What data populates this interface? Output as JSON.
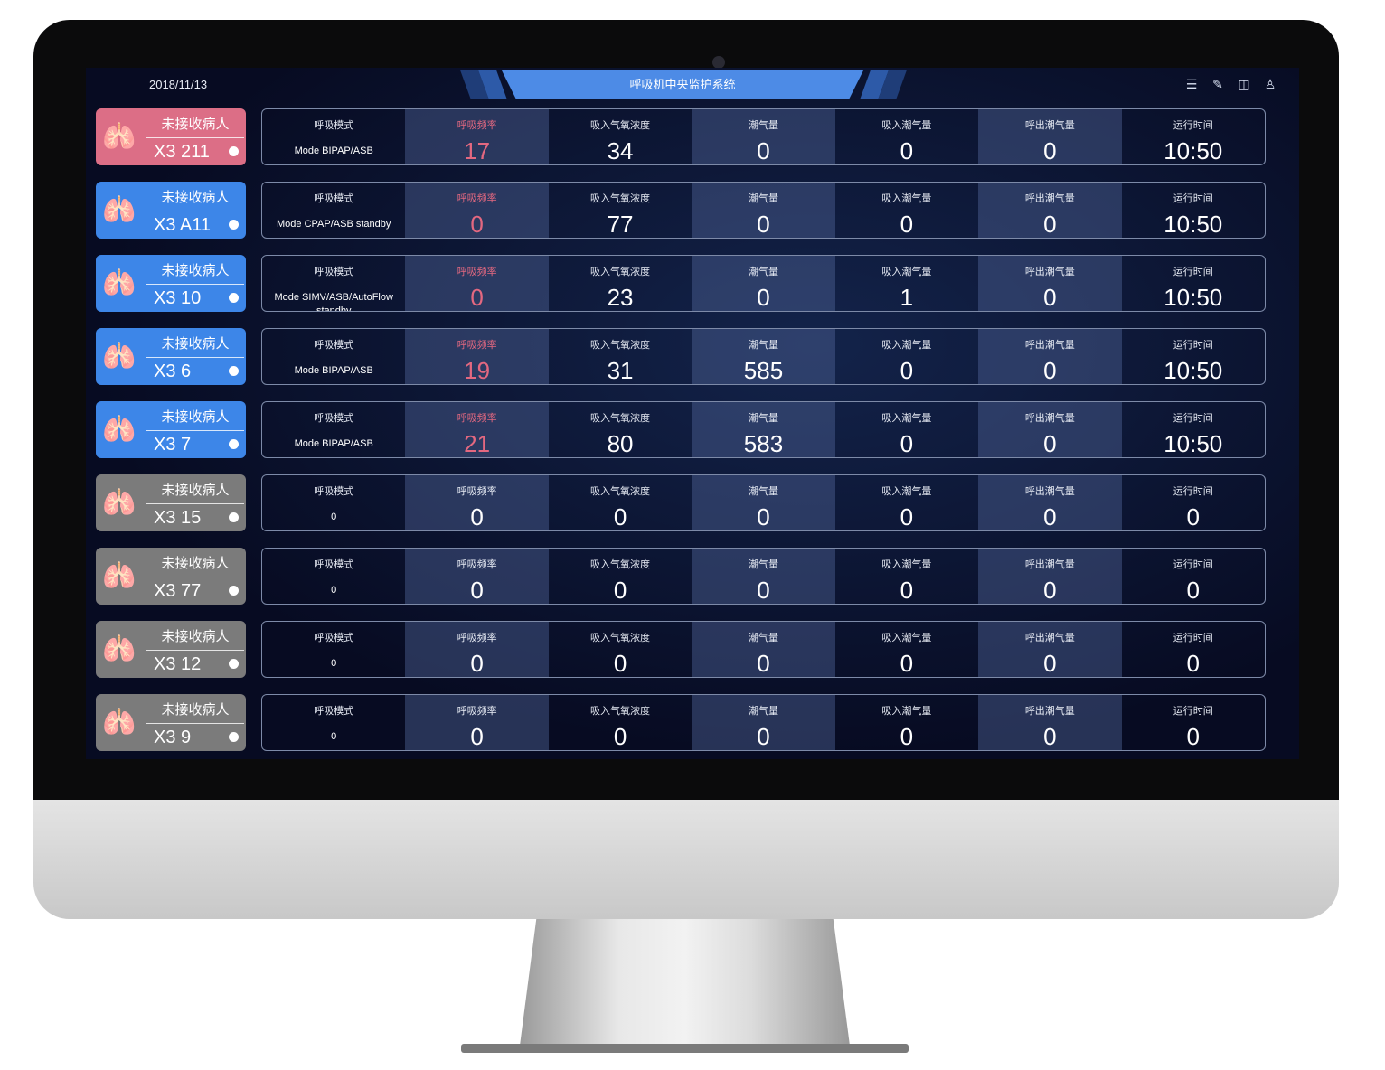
{
  "header": {
    "date": "2018/11/13",
    "title": "呼吸机中央监护系统",
    "icons": [
      "list-icon",
      "edit-icon",
      "layout-icon",
      "user-icon"
    ]
  },
  "columns": [
    "呼吸模式",
    "呼吸频率",
    "吸入气氧浓度",
    "潮气量",
    "吸入潮气量",
    "呼出潮气量",
    "运行时间"
  ],
  "colors": {
    "alarm": "#dc6e86",
    "active": "#3d86e8",
    "idle": "#7b7b7b",
    "accent": "#4d8be6"
  },
  "rows": [
    {
      "status_label": "未接收病人",
      "bed": "X3 211",
      "state": "alarm",
      "values": [
        "Mode BIPAP/ASB",
        "17",
        "34",
        "0",
        "0",
        "0",
        "10:50"
      ]
    },
    {
      "status_label": "未接收病人",
      "bed": "X3 A11",
      "state": "active",
      "values": [
        "Mode CPAP/ASB standby",
        "0",
        "77",
        "0",
        "0",
        "0",
        "10:50"
      ]
    },
    {
      "status_label": "未接收病人",
      "bed": "X3 10",
      "state": "active",
      "values": [
        "Mode SIMV/ASB/AutoFlow standby",
        "0",
        "23",
        "0",
        "1",
        "0",
        "10:50"
      ]
    },
    {
      "status_label": "未接收病人",
      "bed": "X3 6",
      "state": "active",
      "values": [
        "Mode BIPAP/ASB",
        "19",
        "31",
        "585",
        "0",
        "0",
        "10:50"
      ]
    },
    {
      "status_label": "未接收病人",
      "bed": "X3 7",
      "state": "active",
      "values": [
        "Mode BIPAP/ASB",
        "21",
        "80",
        "583",
        "0",
        "0",
        "10:50"
      ]
    },
    {
      "status_label": "未接收病人",
      "bed": "X3 15",
      "state": "idle",
      "values": [
        "0",
        "0",
        "0",
        "0",
        "0",
        "0",
        "0"
      ]
    },
    {
      "status_label": "未接收病人",
      "bed": "X3 77",
      "state": "idle",
      "values": [
        "0",
        "0",
        "0",
        "0",
        "0",
        "0",
        "0"
      ]
    },
    {
      "status_label": "未接收病人",
      "bed": "X3 12",
      "state": "idle",
      "values": [
        "0",
        "0",
        "0",
        "0",
        "0",
        "0",
        "0"
      ]
    },
    {
      "status_label": "未接收病人",
      "bed": "X3 9",
      "state": "idle",
      "values": [
        "0",
        "0",
        "0",
        "0",
        "0",
        "0",
        "0"
      ]
    }
  ]
}
